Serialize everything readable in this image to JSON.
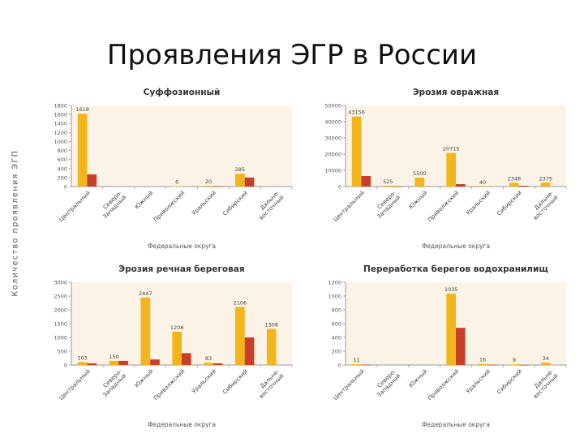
{
  "slide": {
    "title": "Проявления ЭГР в России",
    "y_axis_title": "Количество проявления ЭГП"
  },
  "colors": {
    "bar_primary": "#F2B51B",
    "bar_secondary": "#C8402A",
    "axis": "#9a9a9a",
    "panel_tint": "#fbf3e6"
  },
  "chart_data": [
    {
      "type": "bar",
      "title": "Суффозионный",
      "xlabel": "Федеральные округа",
      "ylabel": "Количество проявления ЭГП",
      "ylim": [
        0,
        1800
      ],
      "yticks": [
        0,
        200,
        400,
        600,
        800,
        1000,
        1200,
        1400,
        1600,
        1800
      ],
      "categories": [
        "Центральный",
        "Северо-Западный",
        "Южный",
        "Приволжский",
        "Уральский",
        "Сибирский",
        "Дальне-восточный"
      ],
      "series": [
        {
          "values": [
            1618,
            0,
            0,
            6,
            20,
            285,
            0
          ]
        },
        {
          "values": [
            270,
            0,
            0,
            0,
            10,
            200,
            0
          ]
        }
      ],
      "data_labels": [
        "1618",
        "",
        "",
        "6",
        "20",
        "285",
        ""
      ]
    },
    {
      "type": "bar",
      "title": "Эрозия овражная",
      "xlabel": "Федеральные округа",
      "ylabel": "Количество проявления ЭГП",
      "ylim": [
        0,
        50000
      ],
      "yticks": [
        0,
        10000,
        20000,
        30000,
        40000,
        50000
      ],
      "categories": [
        "Центральный",
        "Северо-Западный",
        "Южный",
        "Приволжский",
        "Уральский",
        "Сибирский",
        "Дальне-восточный"
      ],
      "series": [
        {
          "values": [
            43156,
            525,
            5500,
            20715,
            40,
            2348,
            2375
          ]
        },
        {
          "values": [
            6500,
            100,
            0,
            1500,
            0,
            500,
            0
          ]
        }
      ],
      "data_labels": [
        "43156",
        "525",
        "5500",
        "20715",
        "40",
        "2348",
        "2375"
      ]
    },
    {
      "type": "bar",
      "title": "Эрозия речная береговая",
      "xlabel": "Федеральные округа",
      "ylabel": "Количество проявления ЭГП",
      "ylim": [
        0,
        3000
      ],
      "yticks": [
        0,
        500,
        1000,
        1500,
        2000,
        2500,
        3000
      ],
      "categories": [
        "Центральный",
        "Северо-Западный",
        "Южный",
        "Приволжский",
        "Уральский",
        "Сибирский",
        "Дальне-восточный"
      ],
      "series": [
        {
          "values": [
            103,
            150,
            2447,
            1208,
            83,
            2106,
            1308
          ]
        },
        {
          "values": [
            60,
            150,
            200,
            430,
            60,
            1000,
            0
          ]
        }
      ],
      "data_labels": [
        "103",
        "150",
        "2447",
        "1208",
        "83",
        "2106",
        "1308"
      ]
    },
    {
      "type": "bar",
      "title": "Переработка берегов водохранилищ",
      "xlabel": "Федеральные округа",
      "ylabel": "Количество проявления ЭГП",
      "ylim": [
        0,
        1200
      ],
      "yticks": [
        0,
        200,
        400,
        600,
        800,
        1000,
        1200
      ],
      "categories": [
        "Центральный",
        "Северо-Западный",
        "Южный",
        "Приволжский",
        "Уральский",
        "Сибирский",
        "Дальне-восточный"
      ],
      "series": [
        {
          "values": [
            11,
            0,
            0,
            1035,
            16,
            9,
            34
          ]
        },
        {
          "values": [
            5,
            0,
            0,
            540,
            5,
            3,
            0
          ]
        }
      ],
      "data_labels": [
        "11",
        "",
        "",
        "1035",
        "16",
        "9",
        "34"
      ]
    }
  ]
}
